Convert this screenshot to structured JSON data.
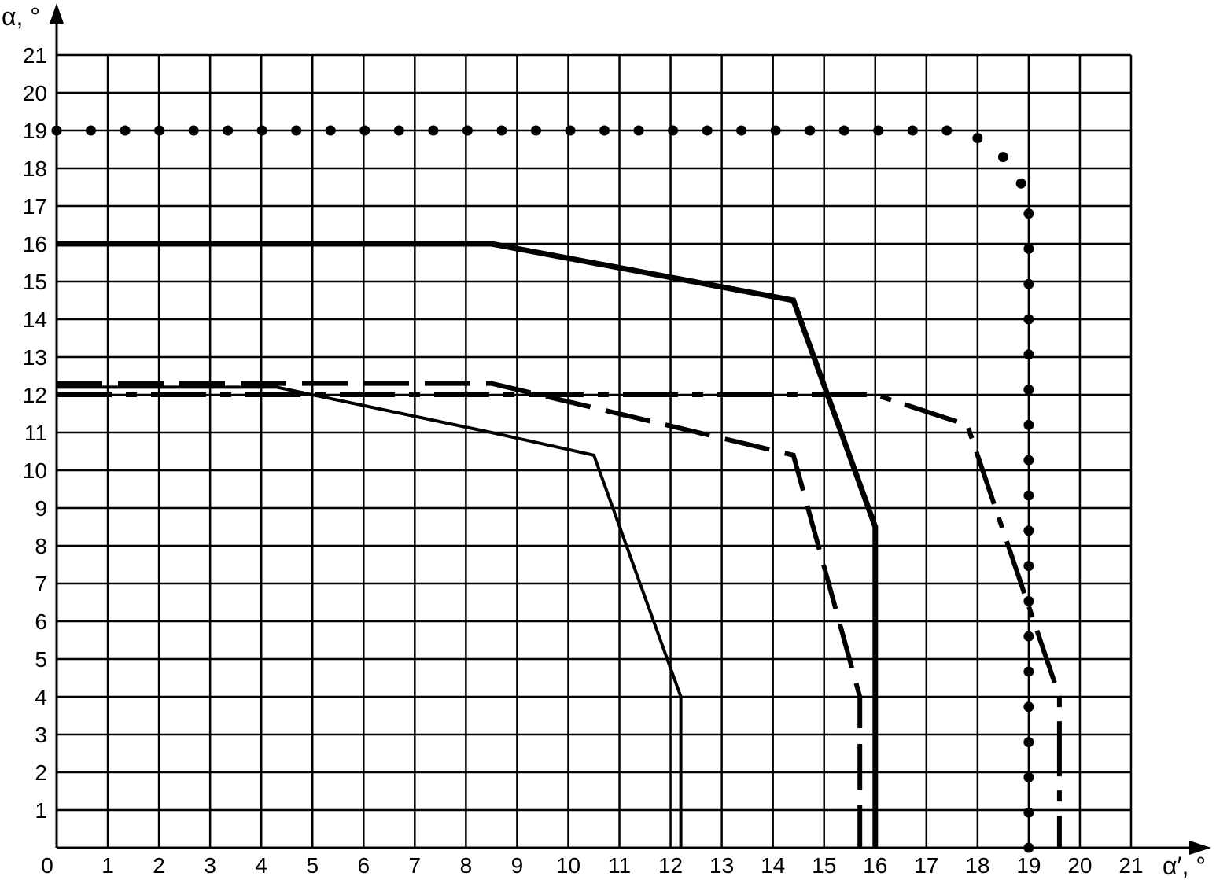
{
  "chart_data": {
    "type": "line",
    "xlabel": "α′, °",
    "ylabel": "α, °",
    "xlim": [
      0,
      21
    ],
    "ylim": [
      0,
      21
    ],
    "x_ticks": [
      "0",
      "1",
      "2",
      "3",
      "4",
      "5",
      "6",
      "7",
      "8",
      "9",
      "10",
      "11",
      "12",
      "13",
      "14",
      "15",
      "16",
      "17",
      "18",
      "19",
      "20",
      "21"
    ],
    "y_ticks": [
      "1",
      "2",
      "3",
      "4",
      "5",
      "6",
      "7",
      "8",
      "9",
      "10",
      "11",
      "12",
      "13",
      "14",
      "15",
      "16",
      "17",
      "18",
      "19",
      "20",
      "21"
    ],
    "grid": true,
    "series": [
      {
        "style": "solid-thin",
        "points": [
          [
            0,
            12.2
          ],
          [
            4.3,
            12.2
          ],
          [
            8.5,
            11.0
          ],
          [
            10.5,
            10.4
          ],
          [
            12.2,
            4.0
          ],
          [
            12.2,
            0
          ]
        ]
      },
      {
        "style": "solid-thick",
        "points": [
          [
            0,
            16.0
          ],
          [
            8.5,
            16.0
          ],
          [
            14.4,
            14.5
          ],
          [
            16.0,
            8.5
          ],
          [
            16.0,
            0
          ]
        ]
      },
      {
        "style": "dashed",
        "points": [
          [
            0,
            12.3
          ],
          [
            8.5,
            12.3
          ],
          [
            14.4,
            10.4
          ],
          [
            15.7,
            4.0
          ],
          [
            15.7,
            0
          ]
        ]
      },
      {
        "style": "dash-dot",
        "points": [
          [
            0,
            12.0
          ],
          [
            16.0,
            12.0
          ],
          [
            17.8,
            11.2
          ],
          [
            19.6,
            4.0
          ],
          [
            19.6,
            0
          ]
        ]
      },
      {
        "style": "dotted",
        "points": [
          [
            0,
            19.0
          ],
          [
            17.4,
            19.0
          ],
          [
            18.0,
            18.8
          ],
          [
            18.5,
            18.3
          ],
          [
            18.85,
            17.6
          ],
          [
            19.0,
            16.8
          ],
          [
            19.0,
            0
          ]
        ]
      }
    ]
  }
}
